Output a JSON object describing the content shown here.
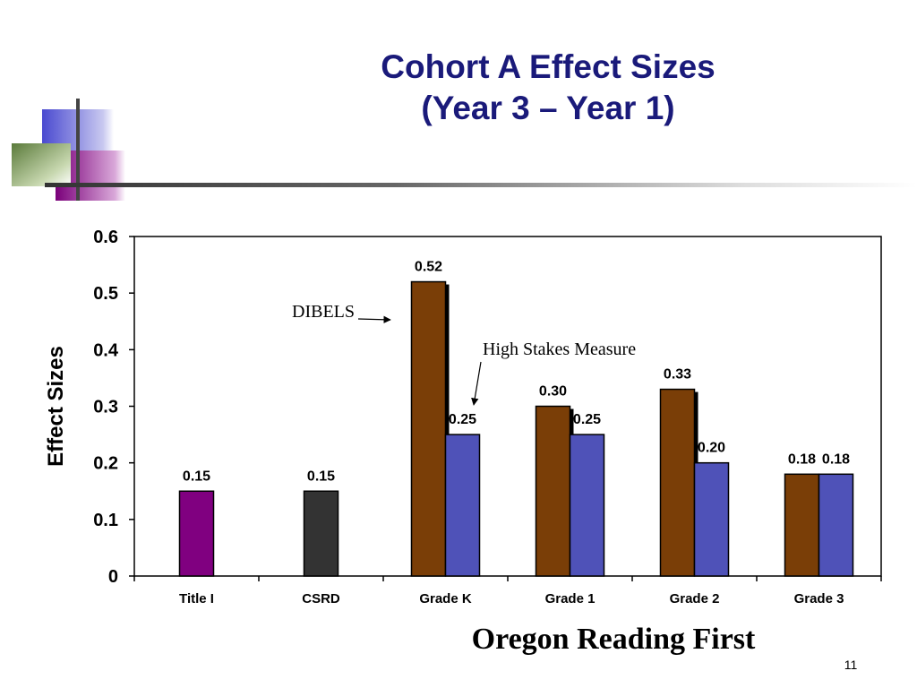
{
  "slide": {
    "title_line1": "Cohort A Effect Sizes",
    "title_line2": "(Year 3 – Year 1)",
    "footer_title": "Oregon Reading First",
    "page_number": "11"
  },
  "colors": {
    "title": "#1a1a7a",
    "brown": "#7a3e07",
    "blue": "#4f52b8",
    "purple": "#800080",
    "dark_gray": "#333333"
  },
  "chart_data": {
    "type": "bar",
    "ylabel": "Effect Sizes",
    "ylim": [
      0,
      0.6
    ],
    "yticks": [
      "0",
      "0.1",
      "0.2",
      "0.3",
      "0.4",
      "0.5",
      "0.6"
    ],
    "categories": [
      "Title I",
      "CSRD",
      "Grade K",
      "Grade 1",
      "Grade 2",
      "Grade 3"
    ],
    "grid": false,
    "legend": "none",
    "bars": [
      {
        "category": "Title I",
        "value": 0.15,
        "label": "0.15",
        "color": "#800080"
      },
      {
        "category": "CSRD",
        "value": 0.15,
        "label": "0.15",
        "color": "#333333"
      },
      {
        "category": "Grade K",
        "value": 0.52,
        "label": "0.52",
        "color": "#7a3e07"
      },
      {
        "category": "Grade K",
        "value": 0.25,
        "label": "0.25",
        "color": "#4f52b8"
      },
      {
        "category": "Grade 1",
        "value": 0.3,
        "label": "0.30",
        "color": "#7a3e07"
      },
      {
        "category": "Grade 1",
        "value": 0.25,
        "label": "0.25",
        "color": "#4f52b8"
      },
      {
        "category": "Grade 2",
        "value": 0.33,
        "label": "0.33",
        "color": "#7a3e07"
      },
      {
        "category": "Grade 2",
        "value": 0.2,
        "label": "0.20",
        "color": "#4f52b8"
      },
      {
        "category": "Grade 3",
        "value": 0.18,
        "label": "0.18",
        "color": "#7a3e07"
      },
      {
        "category": "Grade 3",
        "value": 0.18,
        "label": "0.18",
        "color": "#4f52b8"
      }
    ],
    "annotations": [
      {
        "text": "DIBELS",
        "points_to": "Grade K brown bar"
      },
      {
        "text": "High Stakes Measure",
        "points_to": "Grade K blue bar"
      }
    ]
  }
}
